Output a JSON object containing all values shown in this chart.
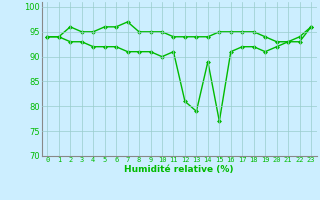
{
  "line1": [
    94,
    94,
    96,
    95,
    95,
    96,
    96,
    97,
    95,
    95,
    95,
    94,
    94,
    94,
    94,
    95,
    95,
    95,
    95,
    94,
    93,
    93,
    94,
    96
  ],
  "line2": [
    94,
    94,
    93,
    93,
    92,
    92,
    92,
    91,
    91,
    91,
    90,
    91,
    81,
    79,
    89,
    77,
    91,
    92,
    92,
    91,
    92,
    93,
    93,
    96
  ],
  "x": [
    0,
    1,
    2,
    3,
    4,
    5,
    6,
    7,
    8,
    9,
    10,
    11,
    12,
    13,
    14,
    15,
    16,
    17,
    18,
    19,
    20,
    21,
    22,
    23
  ],
  "xlabel": "Humidité relative (%)",
  "ylim": [
    70,
    101
  ],
  "xlim": [
    -0.5,
    23.5
  ],
  "yticks": [
    70,
    75,
    80,
    85,
    90,
    95,
    100
  ],
  "xtick_labels": [
    "0",
    "1",
    "2",
    "3",
    "4",
    "5",
    "6",
    "7",
    "8",
    "9",
    "10",
    "11",
    "12",
    "13",
    "14",
    "15",
    "16",
    "17",
    "18",
    "19",
    "20",
    "21",
    "22",
    "23"
  ],
  "line_color": "#00BB00",
  "bg_color": "#CCEEFF",
  "grid_color": "#99CCCC",
  "marker": "D",
  "marker_size": 2.0,
  "linewidth": 1.0
}
